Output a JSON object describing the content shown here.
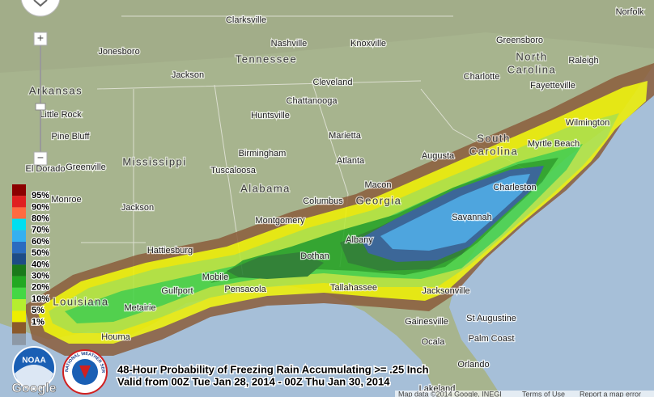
{
  "title_lines": [
    "48-Hour Probability of Freezing Rain Accumulating >= .25 Inch",
    "Valid from 00Z Tue Jan 28, 2014 - 00Z Thu Jan 30, 2014"
  ],
  "legend": {
    "labels": [
      "95%",
      "90%",
      "80%",
      "70%",
      "60%",
      "50%",
      "40%",
      "30%",
      "20%",
      "10%",
      "5%",
      "1%"
    ],
    "colors": [
      "#8b0000",
      "#e02020",
      "#ff6a40",
      "#00dff0",
      "#35b0f0",
      "#2a6cc0",
      "#1d4c86",
      "#1a7a1a",
      "#22a822",
      "#44d844",
      "#b5ee30",
      "#eeee00",
      "#8b5a2b",
      "#8d99a6"
    ]
  },
  "states": [
    {
      "lines": [
        "Tennessee"
      ]
    },
    {
      "lines": [
        "North",
        "Carolina"
      ]
    },
    {
      "lines": [
        "Arkansas"
      ]
    },
    {
      "lines": [
        "South",
        "Carolina"
      ]
    },
    {
      "lines": [
        "Mississippi"
      ]
    },
    {
      "lines": [
        "Alabama"
      ]
    },
    {
      "lines": [
        "Georgia"
      ]
    },
    {
      "lines": [
        "Louisiana"
      ]
    }
  ],
  "cities": [
    "Clarksville",
    "Norfolk",
    "Nashville",
    "Knoxville",
    "Greensboro",
    "Jonesboro",
    "Raleigh",
    "Jackson",
    "Cleveland",
    "Charlotte",
    "Fayetteville",
    "Chattanooga",
    "Little Rock",
    "Huntsville",
    "Pine Bluff",
    "Marietta",
    "Wilmington",
    "Myrtle Beach",
    "Birmingham",
    "Atlanta",
    "Augusta",
    "Greenville",
    "El Dorado",
    "Tuscaloosa",
    "Macon",
    "Columbus",
    "Charleston",
    "Monroe",
    "Jackson",
    "Montgomery",
    "Savannah",
    "Albany",
    "Hattiesburg",
    "Dothan",
    "Mobile",
    "Pensacola",
    "Tallahassee",
    "Jacksonville",
    "Gulfport",
    "Metairie",
    "St Augustine",
    "Gainesville",
    "Palm Coast",
    "Houma",
    "Ocala",
    "Orlando",
    "Lakeland"
  ],
  "controls": {
    "zoom_in": "+",
    "zoom_out": "−"
  },
  "logos": {
    "google": "Google",
    "noaa": "NOAA",
    "nws": "NATIONAL WEATHER SERVICE"
  },
  "footer": [
    "Map data ©2014 Google, INEGI",
    "Terms of Use",
    "Report a map error"
  ]
}
